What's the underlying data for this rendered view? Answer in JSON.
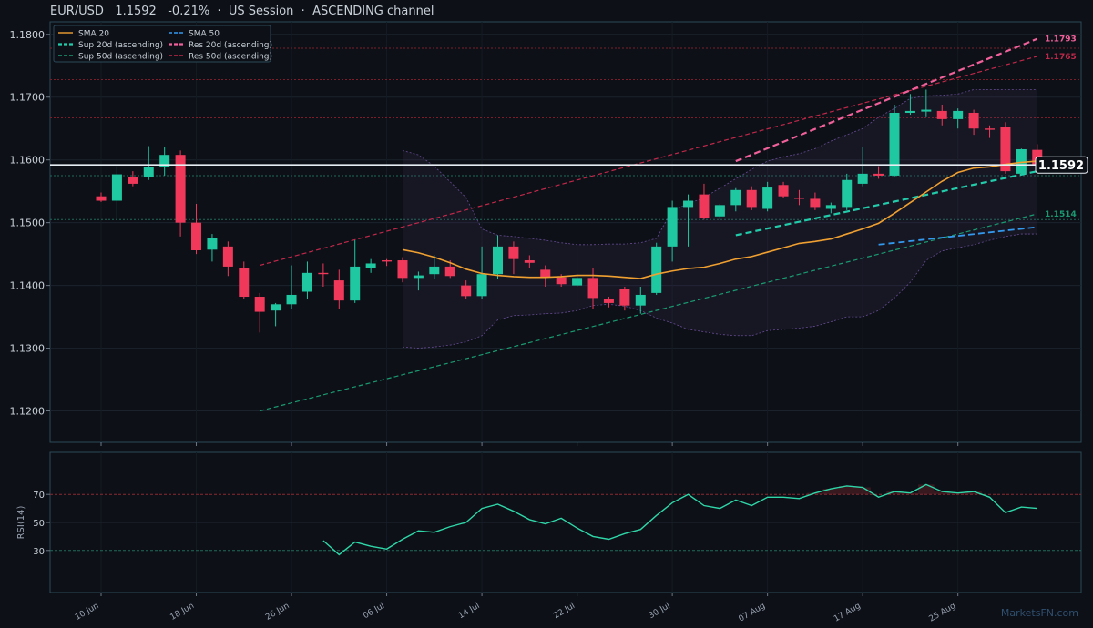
{
  "header": {
    "symbol": "EUR/USD",
    "price": "1.1592",
    "change": "-0.21%",
    "session": "US Session",
    "channel": "ASCENDING channel"
  },
  "watermark": "MarketsFN.com",
  "colors": {
    "up": "#1fc8a0",
    "down": "#f0395a",
    "sma20": "#f0a030",
    "sma50": "#3399ee",
    "sup20": "#22ccaa",
    "res20": "#f0609a",
    "sup50": "#1a9a70",
    "res50": "#c0284a",
    "rsi": "#2fd6a8"
  },
  "chart_data": [
    {
      "type": "candlestick",
      "title": "EUR/USD",
      "ylim": [
        1.115,
        1.182
      ],
      "yticks": [
        "1.1200",
        "1.1300",
        "1.1400",
        "1.1500",
        "1.1600",
        "1.1700",
        "1.1800"
      ],
      "xticks": [
        "10 Jun",
        "18 Jun",
        "26 Jun",
        "06 Jul",
        "14 Jul",
        "22 Jul",
        "30 Jul",
        "07 Aug",
        "17 Aug",
        "25 Aug"
      ],
      "legend": [
        {
          "label": "SMA 20",
          "style": "solid",
          "color_key": "sma20"
        },
        {
          "label": "SMA 50",
          "style": "dashed",
          "color_key": "sma50"
        },
        {
          "label": "Sup 20d (ascending)",
          "style": "dashed-bold",
          "color_key": "sup20"
        },
        {
          "label": "Res 20d (ascending)",
          "style": "dashed-bold",
          "color_key": "res20"
        },
        {
          "label": "Sup 50d (ascending)",
          "style": "dashed",
          "color_key": "sup50"
        },
        {
          "label": "Res 50d (ascending)",
          "style": "dashed",
          "color_key": "res50"
        }
      ],
      "legend_position": "top-left",
      "current_price": "1.1592",
      "price_labels": [
        "1.1793",
        "1.1765",
        "1.1514"
      ],
      "candles": [
        [
          1.1542,
          1.1548,
          1.1533,
          1.1535
        ],
        [
          1.1535,
          1.159,
          1.1505,
          1.1577
        ],
        [
          1.1572,
          1.1582,
          1.1558,
          1.1562
        ],
        [
          1.1572,
          1.1622,
          1.1568,
          1.1588
        ],
        [
          1.1588,
          1.162,
          1.1575,
          1.1608
        ],
        [
          1.1608,
          1.1615,
          1.1478,
          1.15
        ],
        [
          1.15,
          1.153,
          1.145,
          1.1456
        ],
        [
          1.1457,
          1.1482,
          1.1438,
          1.1475
        ],
        [
          1.1462,
          1.147,
          1.1415,
          1.143
        ],
        [
          1.1427,
          1.1438,
          1.1378,
          1.1382
        ],
        [
          1.1382,
          1.1388,
          1.1325,
          1.1358
        ],
        [
          1.136,
          1.1372,
          1.1335,
          1.137
        ],
        [
          1.137,
          1.1432,
          1.1362,
          1.1385
        ],
        [
          1.139,
          1.1438,
          1.1378,
          1.142
        ],
        [
          1.142,
          1.1435,
          1.1398,
          1.1418
        ],
        [
          1.1408,
          1.1425,
          1.1362,
          1.1376
        ],
        [
          1.1376,
          1.1472,
          1.1372,
          1.143
        ],
        [
          1.1428,
          1.1442,
          1.142,
          1.1435
        ],
        [
          1.144,
          1.1442,
          1.1431,
          1.1438
        ],
        [
          1.144,
          1.1445,
          1.1405,
          1.1412
        ],
        [
          1.1412,
          1.1422,
          1.1392,
          1.1416
        ],
        [
          1.1418,
          1.1448,
          1.141,
          1.143
        ],
        [
          1.143,
          1.144,
          1.1412,
          1.1415
        ],
        [
          1.14,
          1.1408,
          1.1378,
          1.1383
        ],
        [
          1.1383,
          1.1462,
          1.1378,
          1.1418
        ],
        [
          1.1418,
          1.148,
          1.141,
          1.1462
        ],
        [
          1.1462,
          1.147,
          1.1418,
          1.1442
        ],
        [
          1.144,
          1.1448,
          1.1428,
          1.1436
        ],
        [
          1.1425,
          1.1432,
          1.1398,
          1.1413
        ],
        [
          1.1413,
          1.1418,
          1.1398,
          1.1402
        ],
        [
          1.14,
          1.1418,
          1.1398,
          1.1412
        ],
        [
          1.1412,
          1.1428,
          1.1362,
          1.138
        ],
        [
          1.1378,
          1.1382,
          1.1365,
          1.1372
        ],
        [
          1.1395,
          1.1398,
          1.136,
          1.1368
        ],
        [
          1.1368,
          1.1398,
          1.1355,
          1.1385
        ],
        [
          1.1388,
          1.1468,
          1.1385,
          1.1462
        ],
        [
          1.1462,
          1.1535,
          1.1438,
          1.1525
        ],
        [
          1.1525,
          1.1545,
          1.1462,
          1.1535
        ],
        [
          1.1545,
          1.1562,
          1.1505,
          1.1508
        ],
        [
          1.151,
          1.153,
          1.1505,
          1.1528
        ],
        [
          1.1528,
          1.1555,
          1.1518,
          1.1552
        ],
        [
          1.1552,
          1.1558,
          1.152,
          1.1525
        ],
        [
          1.1522,
          1.1565,
          1.1518,
          1.1556
        ],
        [
          1.156,
          1.1565,
          1.154,
          1.1542
        ],
        [
          1.154,
          1.1552,
          1.1528,
          1.1538
        ],
        [
          1.1538,
          1.1548,
          1.152,
          1.1525
        ],
        [
          1.1522,
          1.1532,
          1.1515,
          1.1528
        ],
        [
          1.1525,
          1.1578,
          1.152,
          1.1568
        ],
        [
          1.1562,
          1.162,
          1.1558,
          1.1578
        ],
        [
          1.1578,
          1.159,
          1.157,
          1.1575
        ],
        [
          1.1575,
          1.1688,
          1.1572,
          1.1675
        ],
        [
          1.1675,
          1.1705,
          1.1672,
          1.1678
        ],
        [
          1.1677,
          1.1712,
          1.1668,
          1.168
        ],
        [
          1.1678,
          1.1688,
          1.1655,
          1.1665
        ],
        [
          1.1665,
          1.1682,
          1.165,
          1.1678
        ],
        [
          1.1675,
          1.168,
          1.164,
          1.165
        ],
        [
          1.165,
          1.1655,
          1.1635,
          1.1648
        ],
        [
          1.1652,
          1.166,
          1.1578,
          1.1582
        ],
        [
          1.1578,
          1.1618,
          1.1575,
          1.1617
        ],
        [
          1.1616,
          1.1625,
          1.159,
          1.1592
        ]
      ],
      "sma20": [
        [
          19,
          1.1457
        ],
        [
          20,
          1.1452
        ],
        [
          21,
          1.1445
        ],
        [
          22,
          1.1436
        ],
        [
          23,
          1.1426
        ],
        [
          24,
          1.1419
        ],
        [
          25,
          1.1416
        ],
        [
          26,
          1.1414
        ],
        [
          27,
          1.1413
        ],
        [
          28,
          1.1413
        ],
        [
          29,
          1.1414
        ],
        [
          30,
          1.1416
        ],
        [
          31,
          1.1416
        ],
        [
          32,
          1.1415
        ],
        [
          33,
          1.1413
        ],
        [
          34,
          1.1411
        ],
        [
          35,
          1.1418
        ],
        [
          36,
          1.1423
        ],
        [
          37,
          1.1427
        ],
        [
          38,
          1.1429
        ],
        [
          39,
          1.1435
        ],
        [
          40,
          1.1442
        ],
        [
          41,
          1.1446
        ],
        [
          42,
          1.1453
        ],
        [
          43,
          1.146
        ],
        [
          44,
          1.1467
        ],
        [
          45,
          1.147
        ],
        [
          46,
          1.1474
        ],
        [
          47,
          1.1482
        ],
        [
          48,
          1.149
        ],
        [
          49,
          1.1499
        ],
        [
          50,
          1.1515
        ],
        [
          51,
          1.1532
        ],
        [
          52,
          1.1549
        ],
        [
          53,
          1.1566
        ],
        [
          54,
          1.158
        ],
        [
          55,
          1.1587
        ],
        [
          56,
          1.1589
        ],
        [
          57,
          1.1593
        ],
        [
          58,
          1.1596
        ],
        [
          59,
          1.1598
        ]
      ],
      "sma50": [
        [
          49,
          1.1465
        ],
        [
          59,
          1.1493
        ]
      ],
      "bands_x": [
        19,
        20,
        21,
        22,
        23,
        24,
        25,
        26,
        27,
        28,
        29,
        30,
        31,
        32,
        33,
        34,
        35,
        36,
        37,
        38,
        39,
        40,
        41,
        42,
        43,
        44,
        45,
        46,
        47,
        48,
        49,
        50,
        51,
        52,
        53,
        54,
        55,
        56,
        57,
        58,
        59
      ],
      "bands_upper": [
        1.1615,
        1.1608,
        1.159,
        1.1565,
        1.154,
        1.149,
        1.148,
        1.1478,
        1.1475,
        1.1472,
        1.1468,
        1.1465,
        1.1465,
        1.1466,
        1.1466,
        1.1468,
        1.1475,
        1.152,
        1.153,
        1.154,
        1.1555,
        1.157,
        1.1585,
        1.1598,
        1.1605,
        1.161,
        1.1618,
        1.163,
        1.164,
        1.165,
        1.1668,
        1.1682,
        1.1698,
        1.1702,
        1.1703,
        1.1705,
        1.1712,
        1.1712,
        1.1712,
        1.1712,
        1.1712
      ],
      "bands_lower": [
        1.1302,
        1.13,
        1.1302,
        1.1305,
        1.131,
        1.132,
        1.1345,
        1.1352,
        1.1353,
        1.1355,
        1.1356,
        1.136,
        1.1368,
        1.137,
        1.1367,
        1.136,
        1.1348,
        1.134,
        1.133,
        1.1326,
        1.1322,
        1.132,
        1.132,
        1.1328,
        1.133,
        1.1332,
        1.1335,
        1.1342,
        1.135,
        1.135,
        1.136,
        1.138,
        1.1405,
        1.144,
        1.1455,
        1.146,
        1.1465,
        1.1472,
        1.1478,
        1.1482,
        1.1482
      ],
      "trend_lines": [
        {
          "key": "res50",
          "points": [
            [
              10,
              1.1432
            ],
            [
              59,
              1.1765
            ]
          ],
          "width": 1.2
        },
        {
          "key": "sup50",
          "points": [
            [
              10,
              1.12
            ],
            [
              59,
              1.1514
            ]
          ],
          "width": 1.2
        },
        {
          "key": "res20",
          "points": [
            [
              40,
              1.1598
            ],
            [
              59,
              1.1793
            ]
          ],
          "width": 2.2
        },
        {
          "key": "sup20",
          "points": [
            [
              40,
              1.148
            ],
            [
              59,
              1.1582
            ]
          ],
          "width": 2.2
        }
      ],
      "hlines": [
        {
          "y": 1.1778,
          "color": "#7a1f2a"
        },
        {
          "y": 1.1728,
          "color": "#7a1f2a"
        },
        {
          "y": 1.1667,
          "color": "#7a1f2a"
        },
        {
          "y": 1.1575,
          "color": "#1e6b58"
        },
        {
          "y": 1.1505,
          "color": "#1e6b58"
        }
      ]
    },
    {
      "type": "line",
      "ylabel": "RSI(14)",
      "ylim": [
        0,
        100
      ],
      "yticks": [
        "30",
        "50",
        "70"
      ],
      "x_start": 14,
      "values": [
        37,
        27,
        36,
        33,
        31,
        38,
        44,
        43,
        47,
        50,
        60,
        63,
        58,
        52,
        49,
        53,
        46,
        40,
        38,
        42,
        45,
        55,
        64,
        70,
        62,
        60,
        66,
        62,
        68,
        68,
        67,
        71,
        74,
        76,
        75,
        68,
        72,
        71,
        77,
        72,
        71,
        72,
        68,
        57,
        61,
        60
      ]
    }
  ]
}
